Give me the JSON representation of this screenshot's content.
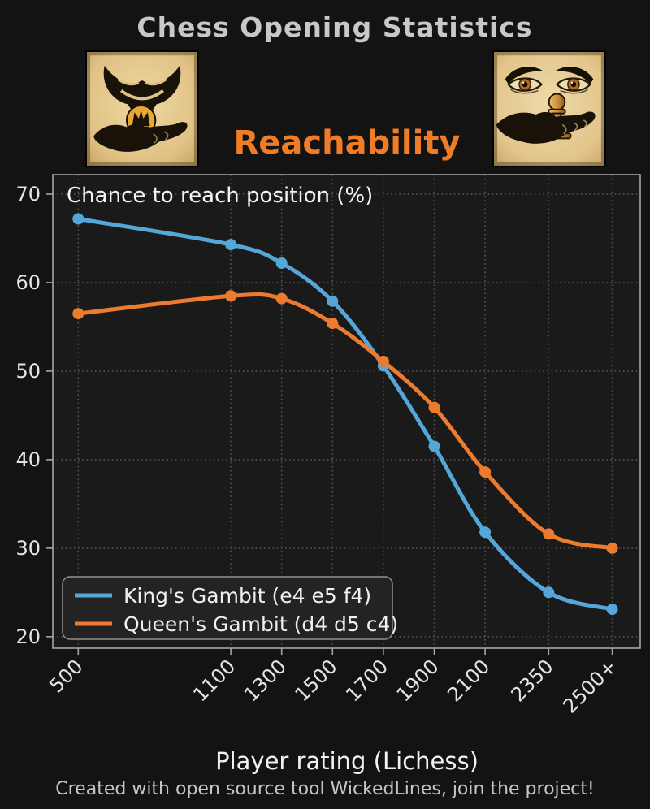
{
  "header": {
    "title": "Chess Opening Statistics",
    "subtitle": "Reachability",
    "subtitle_color": "#f07c28",
    "left_artwork_icon": "mask-hand-holding-crown-coin",
    "right_artwork_icon": "eyes-hand-holding-pawn"
  },
  "chart_data": {
    "type": "line",
    "title": "Reachability",
    "annotation": "Chance to reach position (%)",
    "xlabel": "Player rating (Lichess)",
    "ylabel": "",
    "categories": [
      "500",
      "1100",
      "1300",
      "1500",
      "1700",
      "1900",
      "2100",
      "2350",
      "2500+"
    ],
    "x_numeric": [
      500,
      1100,
      1300,
      1500,
      1700,
      1900,
      2100,
      2350,
      2600
    ],
    "y_ticks": [
      20,
      30,
      40,
      50,
      60,
      70
    ],
    "xlim": [
      400,
      2710
    ],
    "ylim": [
      18.7,
      72.2
    ],
    "grid": "dotted",
    "legend_position": "lower-left",
    "series": [
      {
        "name": "King's Gambit (e4 e5 f4)",
        "color": "#55a6d9",
        "values": [
          67.2,
          64.3,
          62.2,
          57.9,
          50.6,
          41.5,
          31.8,
          25.0,
          23.1
        ]
      },
      {
        "name": "Queen's Gambit (d4 d5 c4)",
        "color": "#ed7b2e",
        "values": [
          56.5,
          58.5,
          58.2,
          55.4,
          51.1,
          45.9,
          38.6,
          31.6,
          30.0
        ]
      }
    ]
  },
  "footer": {
    "caption": "Created with open source tool WickedLines, join the project!"
  }
}
